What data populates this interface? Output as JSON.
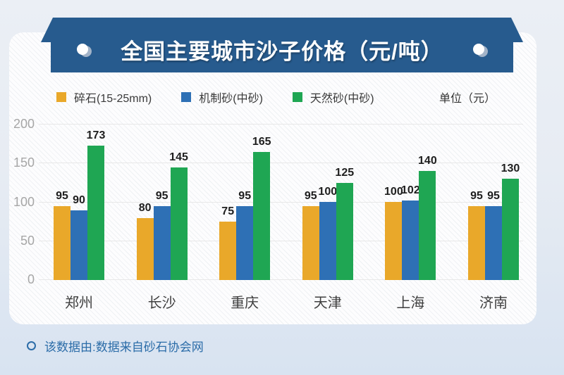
{
  "banner": {
    "title": "全国主要城市沙子价格（元/吨）",
    "color": "#275b8e"
  },
  "legend": {
    "items": [
      {
        "label": "碎石(15-25mm)",
        "color": "#e9a82a"
      },
      {
        "label": "机制砂(中砂)",
        "color": "#2e70b5"
      },
      {
        "label": "天然砂(中砂)",
        "color": "#1fa653"
      }
    ],
    "unit_label": "单位（元）"
  },
  "chart_data": {
    "type": "bar",
    "title": "全国主要城市沙子价格（元/吨）",
    "categories": [
      "郑州",
      "长沙",
      "重庆",
      "天津",
      "上海",
      "济南"
    ],
    "series": [
      {
        "name": "碎石(15-25mm)",
        "color": "#e9a82a",
        "values": [
          95,
          80,
          75,
          95,
          100,
          95
        ]
      },
      {
        "name": "机制砂(中砂)",
        "color": "#2e70b5",
        "values": [
          90,
          95,
          95,
          100,
          102,
          95
        ]
      },
      {
        "name": "天然砂(中砂)",
        "color": "#1fa653",
        "values": [
          173,
          145,
          165,
          125,
          140,
          130
        ]
      }
    ],
    "xlabel": "",
    "ylabel": "",
    "unit": "元",
    "ylim": [
      0,
      200
    ],
    "y_ticks": [
      200,
      150,
      100,
      50,
      0
    ],
    "grid": true,
    "legend_position": "top",
    "value_labels": true
  },
  "footer": {
    "text": "该数据由:数据来自砂石协会网"
  }
}
